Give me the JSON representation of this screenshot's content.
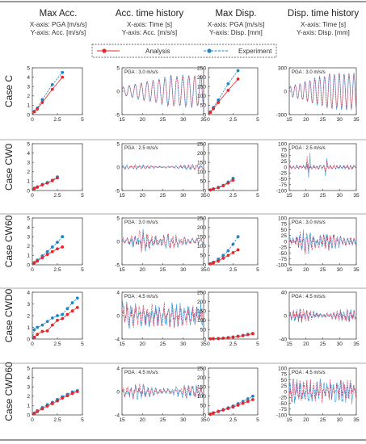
{
  "columns": [
    {
      "title": "Max Acc.",
      "x_label": "X-axis: PGA [m/s/s]",
      "y_label": "Y-axis: Acc. [m/s/s]"
    },
    {
      "title": "Acc. time history",
      "x_label": "X-axis: Time [s]",
      "y_label": "Y-axis: Acc. [m/s/s]"
    },
    {
      "title": "Max Disp.",
      "x_label": "X-axis: PGA [m/s/s]",
      "y_label": "Y-axis: Disp. [mm]"
    },
    {
      "title": "Disp. time history",
      "x_label": "X-axis: Time [s]",
      "y_label": "Y-axis: Disp. [mm]"
    }
  ],
  "legend": {
    "analysis": "Analysis",
    "experiment": "Experiment"
  },
  "colors": {
    "analysis": "#e8262a",
    "experiment": "#1b86c8",
    "th_analysis": "#e0304a",
    "th_experiment": "#3aa0e0",
    "frame": "#333333"
  },
  "chart_data": {
    "type": "grid",
    "rows": [
      {
        "label": "Case C",
        "max_acc": {
          "xlim": [
            0,
            5
          ],
          "ylim": [
            0,
            5
          ],
          "yticks": [
            0,
            1,
            2,
            3,
            4,
            5
          ],
          "xticks": [
            0,
            2.5,
            5
          ],
          "pga": [
            0.2,
            0.5,
            1.0,
            2.0,
            3.0
          ],
          "analysis": [
            0.3,
            0.6,
            1.3,
            2.7,
            4.0
          ],
          "experiment": [
            0.35,
            0.7,
            1.6,
            3.2,
            4.5
          ]
        },
        "acc_th": {
          "pga_label": "PGA : 3.0 m/s/s",
          "xlim": [
            15,
            35
          ],
          "ylim": [
            -5,
            5
          ],
          "yticks": [
            -5,
            0,
            5
          ],
          "xticks": [
            15,
            20,
            25,
            30,
            35
          ],
          "amp": 3.5,
          "kind": "growing"
        },
        "max_disp": {
          "xlim": [
            0,
            5
          ],
          "ylim": [
            0,
            250
          ],
          "yticks": [
            0,
            50,
            100,
            150,
            200,
            250
          ],
          "xticks": [
            0,
            2.5,
            5
          ],
          "pga": [
            0.2,
            0.5,
            1.0,
            2.0,
            3.0
          ],
          "analysis": [
            12,
            32,
            65,
            130,
            190
          ],
          "experiment": [
            15,
            38,
            78,
            165,
            235
          ]
        },
        "disp_th": {
          "pga_label": "PGA : 3.0 m/s/s",
          "xlim": [
            15,
            35
          ],
          "ylim": [
            -300,
            300
          ],
          "yticks": [
            -300,
            0,
            300
          ],
          "xticks": [
            15,
            20,
            25,
            30,
            35
          ],
          "amp": 240,
          "kind": "growing"
        }
      },
      {
        "label": "Case CW0",
        "max_acc": {
          "xlim": [
            0,
            5
          ],
          "ylim": [
            0,
            5
          ],
          "yticks": [
            0,
            1,
            2,
            3,
            4,
            5
          ],
          "xticks": [
            0,
            2.5,
            5
          ],
          "pga": [
            0.2,
            0.5,
            1.0,
            1.5,
            2.0,
            2.5
          ],
          "analysis": [
            0.2,
            0.35,
            0.6,
            0.8,
            1.05,
            1.35
          ],
          "experiment": [
            0.25,
            0.4,
            0.65,
            0.85,
            1.1,
            1.45
          ]
        },
        "acc_th": {
          "pga_label": "PGA : 2.5 m/s/s",
          "xlim": [
            15,
            35
          ],
          "ylim": [
            -5,
            5
          ],
          "yticks": [
            -5,
            0,
            5
          ],
          "xticks": [
            15,
            20,
            25,
            30,
            35
          ],
          "amp": 0.7,
          "kind": "noise"
        },
        "max_disp": {
          "xlim": [
            0,
            5
          ],
          "ylim": [
            0,
            250
          ],
          "yticks": [
            0,
            50,
            100,
            150,
            200,
            250
          ],
          "xticks": [
            0,
            2.5,
            5
          ],
          "pga": [
            0.2,
            0.5,
            1.0,
            1.5,
            2.0,
            2.5
          ],
          "analysis": [
            3,
            8,
            15,
            25,
            40,
            55
          ],
          "experiment": [
            3,
            9,
            17,
            28,
            45,
            65
          ]
        },
        "disp_th": {
          "pga_label": "PGA : 2.5 m/s/s",
          "xlim": [
            15,
            35
          ],
          "ylim": [
            -100,
            100
          ],
          "yticks": [
            -100,
            -75,
            -50,
            -25,
            0,
            25,
            50,
            75,
            100
          ],
          "xticks": [
            15,
            20,
            25,
            30,
            35
          ],
          "amp": 25,
          "kind": "spike"
        }
      },
      {
        "label": "Case CW60",
        "max_acc": {
          "xlim": [
            0,
            5
          ],
          "ylim": [
            0,
            5
          ],
          "yticks": [
            0,
            1,
            2,
            3,
            4,
            5
          ],
          "xticks": [
            0,
            2.5,
            5
          ],
          "pga": [
            0.2,
            0.5,
            1.0,
            1.5,
            2.0,
            2.5,
            3.0
          ],
          "analysis": [
            0.2,
            0.4,
            0.75,
            1.1,
            1.4,
            1.7,
            1.9
          ],
          "experiment": [
            0.25,
            0.5,
            0.95,
            1.4,
            1.9,
            2.4,
            3.0
          ]
        },
        "acc_th": {
          "pga_label": "PGA : 3.0 m/s/s",
          "xlim": [
            15,
            35
          ],
          "ylim": [
            -5,
            5
          ],
          "yticks": [
            -5,
            0,
            5
          ],
          "xticks": [
            15,
            20,
            25,
            30,
            35
          ],
          "amp": 2.0,
          "kind": "burst"
        },
        "max_disp": {
          "xlim": [
            0,
            5
          ],
          "ylim": [
            0,
            250
          ],
          "yticks": [
            0,
            50,
            100,
            150,
            200,
            250
          ],
          "xticks": [
            0,
            2.5,
            5
          ],
          "pga": [
            0.2,
            0.5,
            1.0,
            1.5,
            2.0,
            2.5,
            3.0
          ],
          "analysis": [
            5,
            10,
            20,
            35,
            50,
            65,
            80
          ],
          "experiment": [
            6,
            14,
            30,
            50,
            75,
            110,
            150
          ]
        },
        "disp_th": {
          "pga_label": "PGA : 3.0 m/s/s",
          "xlim": [
            15,
            35
          ],
          "ylim": [
            -100,
            100
          ],
          "yticks": [
            -100,
            -75,
            -50,
            -25,
            0,
            25,
            50,
            75,
            100
          ],
          "xticks": [
            15,
            20,
            25,
            30,
            35
          ],
          "amp": 45,
          "kind": "burst"
        }
      },
      {
        "label": "Case CWD0",
        "max_acc": {
          "xlim": [
            0,
            5
          ],
          "ylim": [
            0,
            4
          ],
          "yticks": [
            0,
            1,
            2,
            3,
            4
          ],
          "xticks": [
            0,
            2.5,
            5
          ],
          "pga": [
            0.2,
            0.5,
            1.0,
            1.5,
            2.0,
            2.5,
            3.0,
            3.5,
            4.0,
            4.5
          ],
          "analysis": [
            0.15,
            0.4,
            0.65,
            0.7,
            1.2,
            1.6,
            1.75,
            2.1,
            2.4,
            2.7
          ],
          "experiment": [
            0.8,
            1.0,
            1.2,
            1.5,
            1.8,
            2.0,
            2.1,
            2.6,
            3.1,
            3.5
          ]
        },
        "acc_th": {
          "pga_label": "PGA : 4.5 m/s/s",
          "xlim": [
            15,
            35
          ],
          "ylim": [
            -4,
            4
          ],
          "yticks": [
            -4,
            0,
            4
          ],
          "xticks": [
            15,
            20,
            25,
            30,
            35
          ],
          "amp": 2.3,
          "kind": "dense"
        },
        "max_disp": {
          "xlim": [
            0,
            5
          ],
          "ylim": [
            0,
            250
          ],
          "yticks": [
            0,
            50,
            100,
            150,
            200,
            250
          ],
          "xticks": [
            0,
            2.5,
            5
          ],
          "pga": [
            0.2,
            0.5,
            1.0,
            1.5,
            2.0,
            2.5,
            3.0,
            3.5,
            4.0,
            4.5
          ],
          "analysis": [
            1,
            2,
            3,
            5,
            7,
            10,
            14,
            18,
            23,
            28
          ],
          "experiment": [
            1,
            2,
            3,
            5,
            8,
            11,
            15,
            20,
            25,
            30
          ]
        },
        "disp_th": {
          "pga_label": "PGA : 4.5 m/s/s",
          "xlim": [
            15,
            35
          ],
          "ylim": [
            -40,
            40
          ],
          "yticks": [
            -40,
            0,
            40
          ],
          "xticks": [
            15,
            20,
            25,
            30,
            35
          ],
          "amp": 14,
          "kind": "noise"
        }
      },
      {
        "label": "Case CWD60",
        "max_acc": {
          "xlim": [
            0,
            5
          ],
          "ylim": [
            0,
            5
          ],
          "yticks": [
            0,
            1,
            2,
            3,
            4,
            5
          ],
          "xticks": [
            0,
            2.5,
            5
          ],
          "pga": [
            0.2,
            0.5,
            1.0,
            1.5,
            2.0,
            2.5,
            3.0,
            3.5,
            4.0,
            4.5
          ],
          "analysis": [
            0.15,
            0.35,
            0.65,
            0.95,
            1.2,
            1.5,
            1.8,
            2.05,
            2.3,
            2.5
          ],
          "experiment": [
            0.2,
            0.45,
            0.8,
            1.1,
            1.35,
            1.65,
            1.95,
            2.2,
            2.45,
            2.6
          ]
        },
        "acc_th": {
          "pga_label": "PGA : 4.5 m/s/s",
          "xlim": [
            15,
            35
          ],
          "ylim": [
            -4,
            4
          ],
          "yticks": [
            -4,
            0,
            4
          ],
          "xticks": [
            15,
            20,
            25,
            30,
            35
          ],
          "amp": 1.6,
          "kind": "noise"
        },
        "max_disp": {
          "xlim": [
            0,
            5
          ],
          "ylim": [
            0,
            250
          ],
          "yticks": [
            0,
            50,
            100,
            150,
            200,
            250
          ],
          "xticks": [
            0,
            2.5,
            5
          ],
          "pga": [
            0.2,
            0.5,
            1.0,
            1.5,
            2.0,
            2.5,
            3.0,
            3.5,
            4.0,
            4.5
          ],
          "analysis": [
            4,
            10,
            18,
            26,
            34,
            42,
            52,
            62,
            72,
            82
          ],
          "experiment": [
            5,
            12,
            20,
            29,
            38,
            48,
            60,
            72,
            86,
            100
          ]
        },
        "disp_th": {
          "pga_label": "PGA : 4.5 m/s/s",
          "xlim": [
            15,
            35
          ],
          "ylim": [
            -100,
            100
          ],
          "yticks": [
            -100,
            -75,
            -50,
            -25,
            0,
            25,
            50,
            75,
            100
          ],
          "xticks": [
            15,
            20,
            25,
            30,
            35
          ],
          "amp": 55,
          "kind": "dense"
        }
      }
    ]
  }
}
